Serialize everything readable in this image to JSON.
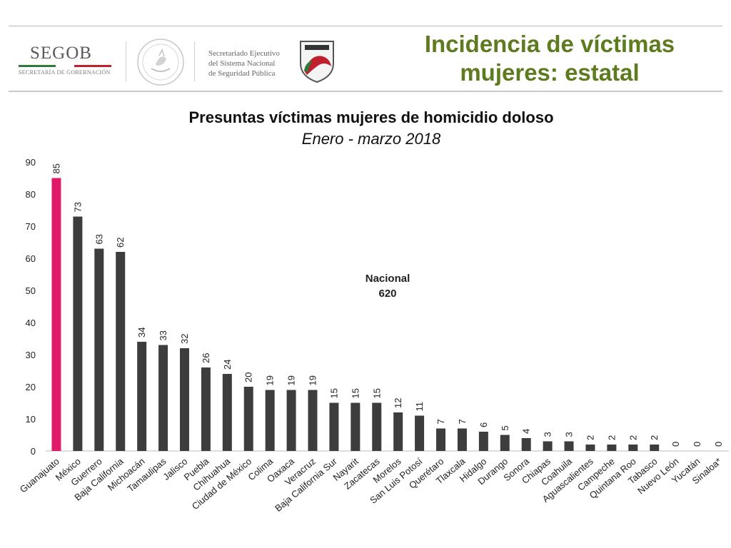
{
  "header": {
    "logo_main": "SEGOB",
    "logo_sub": "SECRETARÍA DE GOBERNACIÓN",
    "agency_line1": "Secretariado Ejecutivo",
    "agency_line2": "del Sistema Nacional",
    "agency_line3": "de Seguridad Pública",
    "page_title_line1": "Incidencia de víctimas",
    "page_title_line2": "mujeres: estatal",
    "seal_icon": "coat-of-arms-icon",
    "shield_icon": "sesnsp-shield-icon"
  },
  "colors": {
    "title_green": "#5e7c1f",
    "highlight_bar": "#e0196b",
    "bar": "#3d3d3d"
  },
  "chart_data": {
    "type": "bar",
    "title": "Presuntas víctimas mujeres de homicidio doloso",
    "subtitle": "Enero - marzo 2018",
    "annotation_line1": "Nacional",
    "annotation_line2": "620",
    "ylim": [
      0,
      90
    ],
    "yticks": [
      0,
      10,
      20,
      30,
      40,
      50,
      60,
      70,
      80,
      90
    ],
    "grid": false,
    "highlight_category": "Guanajuato",
    "categories": [
      "Guanajuato",
      "México",
      "Guerrero",
      "Baja California",
      "Michoacán",
      "Tamaulipas",
      "Jalisco",
      "Puebla",
      "Chihuahua",
      "Ciudad de México",
      "Colima",
      "Oaxaca",
      "Veracruz",
      "Baja California Sur",
      "Nayarit",
      "Zacatecas",
      "Morelos",
      "San Luis Potosí",
      "Querétaro",
      "Tlaxcala",
      "Hidalgo",
      "Durango",
      "Sonora",
      "Chiapas",
      "Coahuila",
      "Aguascalientes",
      "Campeche",
      "Quintana Roo",
      "Tabasco",
      "Nuevo León",
      "Yucatán",
      "Sinaloa*"
    ],
    "values": [
      85,
      73,
      63,
      62,
      34,
      33,
      32,
      26,
      24,
      20,
      19,
      19,
      19,
      15,
      15,
      15,
      12,
      11,
      7,
      7,
      6,
      5,
      4,
      3,
      3,
      2,
      2,
      2,
      2,
      0,
      0,
      0
    ]
  }
}
